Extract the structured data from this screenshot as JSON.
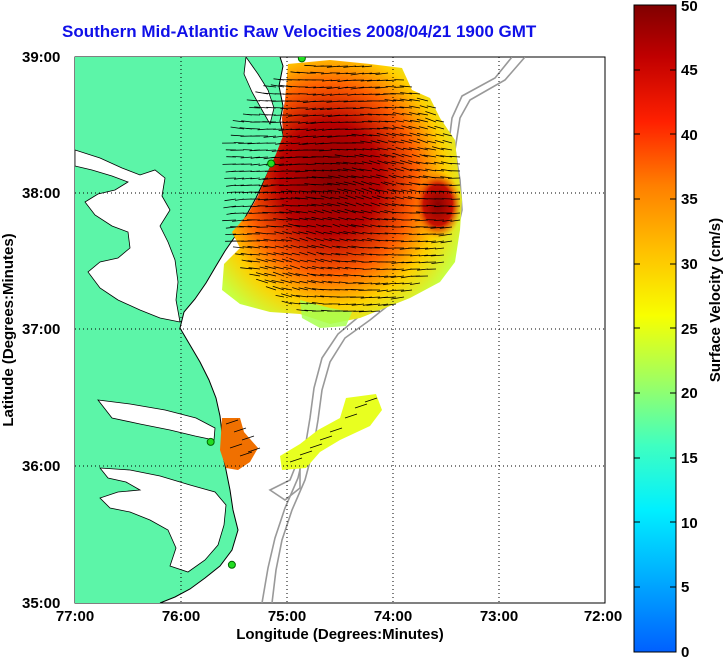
{
  "title": "Southern Mid-Atlantic Raw Velocities 2008/04/21 1900 GMT",
  "xlabel": "Longitude (Degrees:Minutes)",
  "ylabel": "Latitude (Degrees:Minutes)",
  "x_ticks": [
    "77:00",
    "76:00",
    "75:00",
    "74:00",
    "73:00",
    "72:00"
  ],
  "y_ticks": [
    "39:00",
    "38:00",
    "37:00",
    "36:00",
    "35:00"
  ],
  "colorbar": {
    "label": "Surface Velocity (cm/s)",
    "ticks": [
      "0",
      "5",
      "10",
      "15",
      "20",
      "25",
      "30",
      "35",
      "40",
      "45",
      "50"
    ],
    "min": 0,
    "max": 50
  },
  "colors": {
    "title": "#1010e8",
    "land": "#5cf5a8",
    "bathymetry": "#999999",
    "station": "#22dd22"
  },
  "stations": [
    {
      "lon": -74.86,
      "lat": 38.99
    },
    {
      "lon": -75.15,
      "lat": 38.22
    },
    {
      "lon": -75.72,
      "lat": 36.18
    },
    {
      "lon": -75.52,
      "lat": 35.28
    }
  ]
}
